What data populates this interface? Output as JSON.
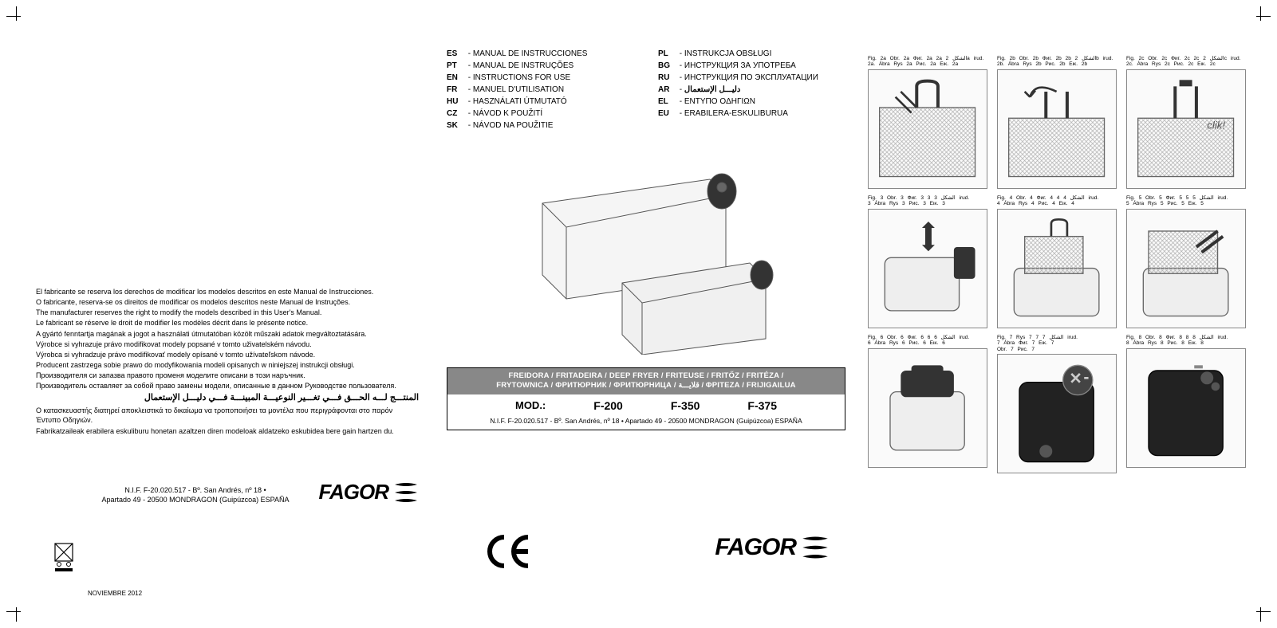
{
  "crop_marks": true,
  "panel1": {
    "notes": [
      "El fabricante se reserva los derechos de modificar los modelos descritos en este Manual de Instrucciones.",
      "O fabricante, reserva-se os direitos de modificar os modelos descritos neste Manual de Instruções.",
      "The manufacturer reserves the right to modify the models described in this User's Manual.",
      "Le fabricant se réserve le droit de modifier les modèles décrit dans le présente notice.",
      "A gyártó fenntartja magának a jogot a használati útmutatóban közölt műszaki adatok megváltoztatására.",
      "Výrobce si vyhrazuje právo modifikovat modely popsané v tomto uživatelském návodu.",
      "Výrobca si vyhradzuje právo modifikovať modely opísané v tomto užívateľskom návode.",
      "Producent zastrzega sobie prawo do modyfikowania modeli opisanych w niniejszej instrukcji obsługi.",
      "Производителя си запазва правото променя моделите описани в този наръчник.",
      "Производитель оставляет за собой право замены модели, описанные в данном Руководстве пользователя."
    ],
    "arabic_note": "المنتـــج لـــه الحـــق فـــي تغـــير النوعيـــة المبينـــة فـــي دليـــل الإستعمال",
    "greek_note": "Ο κατασκευαστής διατηρεί αποκλειστικά το δικαίωμα να τροποποιήσει τα μοντέλα που περιγράφονται στο παρόν Έντυπο Οδηγιών.",
    "basque_note": "Fabrikatzaileak erabilera eskuliburu honetan azaltzen diren modeloak aldatzeko eskubidea bere gain hartzen du.",
    "address_line1": "N.I.F. F-20.020.517 - Bº. San Andrés, nº 18 •",
    "address_line2": "Apartado 49 - 20500 MONDRAGON (Guipúzcoa) ESPAÑA",
    "brand": "FAGOR",
    "date": "NOVIEMBRE 2012"
  },
  "panel2": {
    "languages_left": [
      {
        "code": "ES",
        "label": "MANUAL DE INSTRUCCIONES"
      },
      {
        "code": "PT",
        "label": "MANUAL DE INSTRUÇÕES"
      },
      {
        "code": "EN",
        "label": "INSTRUCTIONS FOR USE"
      },
      {
        "code": "FR",
        "label": "MANUEL D'UTILISATION"
      },
      {
        "code": "HU",
        "label": "HASZNÁLATI ÚTMUTATÓ"
      },
      {
        "code": "CZ",
        "label": "NÁVOD K POUŽITÍ"
      },
      {
        "code": "SK",
        "label": "NÁVOD NA POUŽITIE"
      }
    ],
    "languages_right": [
      {
        "code": "PL",
        "label": "INSTRUKCJA OBSŁUGI"
      },
      {
        "code": "BG",
        "label": "ИНСТРУКЦИЯ ЗА УПОТРЕБА"
      },
      {
        "code": "RU",
        "label": "ИНСТРУКЦИЯ ПО ЭКСПЛУАТАЦИИ"
      },
      {
        "code": "AR",
        "label": "دليـــل الإستعمال",
        "rtl": true
      },
      {
        "code": "EL",
        "label": "ENTYΠO OΔHΓIΩN"
      },
      {
        "code": "EU",
        "label": "ERABILERA-ESKULIBURUA"
      }
    ],
    "product_header_line1": "FREIDORA / FRITADEIRA / DEEP FRYER / FRITEUSE / FRITŐZ / FRITÉZA /",
    "product_header_line2": "FRYTOWNICA / ФРИТЮРНИК / ФРИТЮРНИЦА / قلايـــة / ΦPITEZA / FRIJIGAILUA",
    "mod_label": "MOD.:",
    "models": [
      "F-200",
      "F-350",
      "F-375"
    ],
    "address": "N.I.F. F-20.020.517 - Bº. San Andrés, nº 18 • Apartado 49 - 20500 MONDRAGON (Guipúzcoa) ESPAÑA",
    "brand": "FAGOR"
  },
  "panel3": {
    "figures": [
      {
        "caption": "Fig. 2a   Obr. 2a   Фиг. 2a   2a الشكل   2a irud.\n2a. Ábra   Rys 2a   Рис. 2a   Εικ. 2a"
      },
      {
        "caption": "Fig. 2b   Obr. 2b   Фиг. 2b   2b الشكل   2b irud.\n2b. Ábra   Rys 2b   Рис. 2b   Εικ. 2b"
      },
      {
        "caption": "Fig. 2c   Obr. 2c   Фиг. 2c   2c الشكل   2c irud.\n2c. Ábra   Rys 2c   Рис. 2c   Εικ. 2c"
      },
      {
        "caption": "Fig. 3   Obr. 3   Фиг. 3   3 الشكل   3 irud.\n3 Ábra   Rys 3   Рис. 3   Εικ. 3"
      },
      {
        "caption": "Fig. 4   Obr. 4   Фиг. 4   4 الشكل   4 irud.\n4 Ábra   Rys 4   Рис. 4   Εικ. 4"
      },
      {
        "caption": "Fig. 5   Obr. 5   Фиг. 5   5 الشكل   5 irud.\n5 Ábra   Rys 5   Рис. 5   Εικ. 5"
      },
      {
        "caption": "Fig. 6   Obr. 6   Фиг. 6   6 الشكل   6 irud.\n6 Ábra   Rys 6   Рис. 6   Εικ. 6"
      },
      {
        "caption": "Fig. 7   Rys 7   7 الشكل   7 irud.\n7 Ábra   Фиг. 7   Εικ. 7\nObr. 7   Рис. 7"
      },
      {
        "caption": "Fig. 8   Obr. 8   Фиг. 8   8 الشكل   8 irud.\n8 Ábra   Rys 8   Рис. 8   Εικ. 8"
      }
    ]
  },
  "colors": {
    "header_bg": "#888888",
    "header_fg": "#ffffff",
    "border": "#000000",
    "fig_border": "#999999"
  }
}
